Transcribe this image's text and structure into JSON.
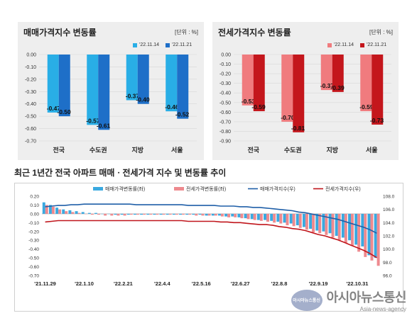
{
  "panel_left": {
    "title": "매매가격지수 변동률",
    "unit": "[단위 : %]",
    "legend": [
      "'22.11.14",
      "'22.11.21"
    ],
    "colors": [
      "#29aee6",
      "#1e6fc8"
    ]
  },
  "panel_right": {
    "title": "전세가격지수 변동률",
    "unit": "[단위 : %]",
    "legend": [
      "'22.11.14",
      "'22.11.21"
    ],
    "colors": [
      "#f07b7e",
      "#c4161c"
    ]
  },
  "bottom": {
    "title": "최근 1년간 전국 아파트 매매ㆍ전세가격 지수 및 변동률 추이",
    "legend": [
      "매매가격변동률(좌)",
      "전세가격변동률(좌)",
      "매매가격지수(우)",
      "전세가격지수(우)"
    ],
    "colors": {
      "sale_bar": "#3aa9e0",
      "rent_bar": "#ee8a8f",
      "sale_line": "#1f5fa8",
      "rent_line": "#c0151b"
    }
  },
  "watermark": {
    "logo": "아시아뉴스통신",
    "main": "아시아뉴스통신",
    "sub": "Asia-news-agency"
  },
  "chart_data": [
    {
      "type": "bar",
      "title": "매매가격지수 변동률",
      "categories": [
        "전국",
        "수도권",
        "지방",
        "서울"
      ],
      "series": [
        {
          "name": "'22.11.14",
          "values": [
            -0.47,
            -0.57,
            -0.37,
            -0.46
          ]
        },
        {
          "name": "'22.11.21",
          "values": [
            -0.5,
            -0.61,
            -0.4,
            -0.52
          ]
        }
      ],
      "ylim": [
        -0.7,
        0.0
      ],
      "yticks": [
        "0.00",
        "-0.10",
        "-0.20",
        "-0.30",
        "-0.40",
        "-0.50",
        "-0.60",
        "-0.70"
      ],
      "data_labels": [
        [
          "-0.47",
          "-0.57",
          "-0.37",
          "-0.46"
        ],
        [
          "-0.50",
          "-0.61",
          "-0.40",
          "-0.52"
        ]
      ],
      "legend_position": "top-right"
    },
    {
      "type": "bar",
      "title": "전세가격지수 변동률",
      "categories": [
        "전국",
        "수도권",
        "지방",
        "서울"
      ],
      "series": [
        {
          "name": "'22.11.14",
          "values": [
            -0.53,
            -0.7,
            -0.37,
            -0.59
          ]
        },
        {
          "name": "'22.11.21",
          "values": [
            -0.59,
            -0.81,
            -0.39,
            -0.73
          ]
        }
      ],
      "ylim": [
        -0.9,
        0.0
      ],
      "yticks": [
        "0.00",
        "-0.10",
        "-0.20",
        "-0.30",
        "-0.40",
        "-0.50",
        "-0.60",
        "-0.70",
        "-0.80",
        "-0.90"
      ],
      "data_labels": [
        [
          "-0.53",
          "-0.70",
          "-0.37",
          "-0.59"
        ],
        [
          "-0.59",
          "-0.81",
          "-0.39",
          "-0.73"
        ]
      ],
      "legend_position": "top-right"
    },
    {
      "type": "bar",
      "title": "최근 1년간 전국 아파트 매매ㆍ전세가격 지수 및 변동률 추이",
      "x_ticks": [
        "'21.11.29",
        "'22.1.10",
        "'22.2.21",
        "'22.4.4",
        "'22.5.16",
        "'22.6.27",
        "'22.8.8",
        "'22.9.19",
        "'22.10.31"
      ],
      "n_weeks": 52,
      "left_axis": {
        "ylim": [
          -0.7,
          0.2
        ],
        "ticks": [
          "0.20",
          "0.10",
          "0.00",
          "-0.10",
          "-0.20",
          "-0.30",
          "-0.40",
          "-0.50",
          "-0.60",
          "-0.70"
        ]
      },
      "right_axis": {
        "ylim": [
          96.0,
          108.0
        ],
        "ticks": [
          "108.0",
          "106.0",
          "104.0",
          "102.0",
          "100.0",
          "98.0",
          "96.0"
        ]
      },
      "series": [
        {
          "name": "매매가격변동률(좌)",
          "axis": "left",
          "kind": "bar",
          "values": [
            0.13,
            0.1,
            0.07,
            0.05,
            0.04,
            0.03,
            0.02,
            0.01,
            0.01,
            0.0,
            0.0,
            -0.01,
            -0.01,
            -0.01,
            -0.01,
            -0.01,
            -0.01,
            -0.01,
            -0.01,
            -0.01,
            -0.01,
            -0.01,
            -0.01,
            -0.01,
            -0.01,
            -0.02,
            -0.02,
            -0.02,
            -0.03,
            -0.03,
            -0.04,
            -0.05,
            -0.06,
            -0.07,
            -0.07,
            -0.08,
            -0.09,
            -0.1,
            -0.11,
            -0.13,
            -0.15,
            -0.17,
            -0.19,
            -0.2,
            -0.22,
            -0.25,
            -0.27,
            -0.3,
            -0.35,
            -0.37,
            -0.47,
            -0.5
          ]
        },
        {
          "name": "전세가격변동률(좌)",
          "axis": "left",
          "kind": "bar",
          "values": [
            0.1,
            0.08,
            0.05,
            0.03,
            0.02,
            0.01,
            0.0,
            -0.01,
            -0.01,
            -0.02,
            -0.02,
            -0.02,
            -0.02,
            -0.01,
            -0.01,
            -0.01,
            -0.01,
            -0.01,
            -0.01,
            -0.01,
            -0.01,
            -0.01,
            -0.01,
            -0.02,
            -0.02,
            -0.02,
            -0.02,
            -0.03,
            -0.04,
            -0.04,
            -0.05,
            -0.06,
            -0.07,
            -0.08,
            -0.09,
            -0.1,
            -0.11,
            -0.13,
            -0.14,
            -0.16,
            -0.18,
            -0.21,
            -0.22,
            -0.24,
            -0.27,
            -0.3,
            -0.33,
            -0.36,
            -0.43,
            -0.49,
            -0.53,
            -0.59
          ]
        },
        {
          "name": "매매가격지수(우)",
          "axis": "right",
          "kind": "line",
          "values": [
            106.4,
            106.5,
            106.6,
            106.6,
            106.7,
            106.7,
            106.8,
            106.8,
            106.8,
            106.8,
            106.8,
            106.8,
            106.8,
            106.8,
            106.7,
            106.7,
            106.7,
            106.7,
            106.7,
            106.7,
            106.7,
            106.7,
            106.6,
            106.6,
            106.6,
            106.6,
            106.6,
            106.5,
            106.5,
            106.5,
            106.4,
            106.4,
            106.3,
            106.3,
            106.2,
            106.1,
            106.0,
            105.9,
            105.8,
            105.6,
            105.5,
            105.3,
            105.1,
            104.9,
            104.7,
            104.5,
            104.2,
            103.9,
            103.6,
            103.3,
            102.9,
            102.4
          ]
        },
        {
          "name": "전세가격지수(우)",
          "axis": "right",
          "kind": "line",
          "values": [
            104.1,
            104.2,
            104.3,
            104.3,
            104.3,
            104.3,
            104.3,
            104.3,
            104.3,
            104.3,
            104.3,
            104.3,
            104.3,
            104.3,
            104.3,
            104.3,
            104.3,
            104.3,
            104.3,
            104.3,
            104.3,
            104.3,
            104.2,
            104.2,
            104.2,
            104.2,
            104.2,
            104.1,
            104.1,
            104.0,
            104.0,
            103.9,
            103.8,
            103.7,
            103.7,
            103.6,
            103.4,
            103.3,
            103.1,
            103.0,
            102.8,
            102.5,
            102.2,
            102.0,
            101.7,
            101.4,
            101.0,
            100.6,
            100.2,
            99.8,
            99.3,
            98.7
          ]
        }
      ],
      "legend_position": "top"
    }
  ]
}
